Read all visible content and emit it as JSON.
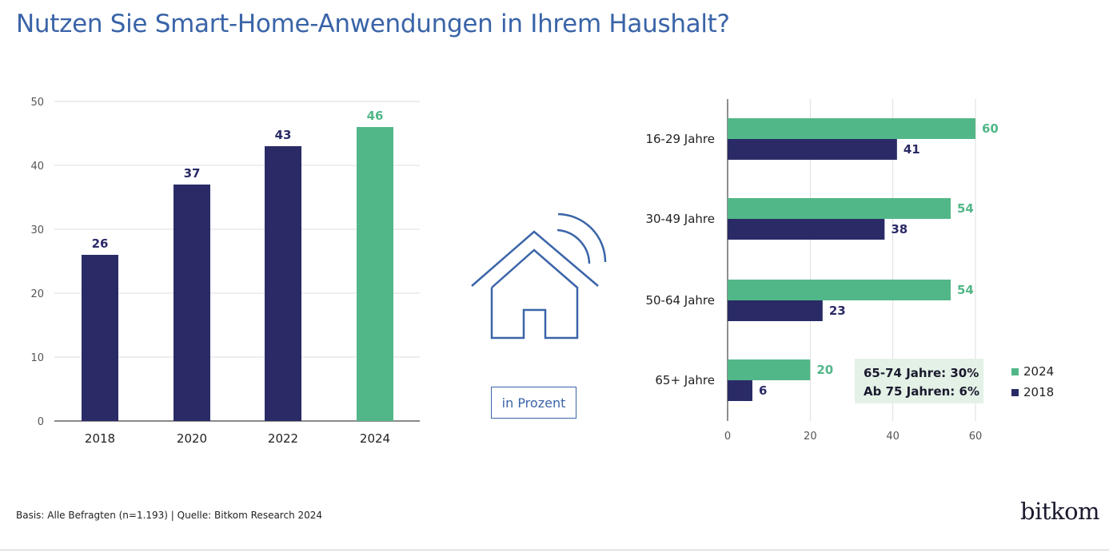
{
  "title": "Nutzen Sie Smart-Home-Anwendungen in Ihrem Haushalt?",
  "unit_label": "in Prozent",
  "note": {
    "line1": "65-74 Jahre: 30%",
    "line2": "Ab 75 Jahren: 6%"
  },
  "footer": "Basis: Alle Befragten (n=1.193) | Quelle: Bitkom Research 2024",
  "logo": "bitkom",
  "colors": {
    "navy": "#2a2b66",
    "green": "#52b788",
    "title_blue": "#3a64a8",
    "grid": "#dddddd"
  },
  "icon": "smart-home-house-icon",
  "chart_data": [
    {
      "type": "bar",
      "categories": [
        "2018",
        "2020",
        "2022",
        "2024"
      ],
      "values": [
        26,
        37,
        43,
        46
      ],
      "bar_colors": [
        "navy",
        "navy",
        "navy",
        "green"
      ],
      "yticks": [
        0,
        10,
        20,
        30,
        40,
        50
      ],
      "ylim": [
        0,
        50
      ],
      "grid": true
    },
    {
      "type": "bar",
      "orientation": "horizontal",
      "categories": [
        "16-29 Jahre",
        "30-49 Jahre",
        "50-64 Jahre",
        "65+ Jahre"
      ],
      "series": [
        {
          "name": "2024",
          "color": "green",
          "values": [
            60,
            54,
            54,
            20
          ]
        },
        {
          "name": "2018",
          "color": "navy",
          "values": [
            41,
            38,
            23,
            6
          ]
        }
      ],
      "xticks": [
        0,
        20,
        40,
        60
      ],
      "xlim": [
        0,
        60
      ],
      "grid": true,
      "legend_position": "bottom-right"
    }
  ]
}
